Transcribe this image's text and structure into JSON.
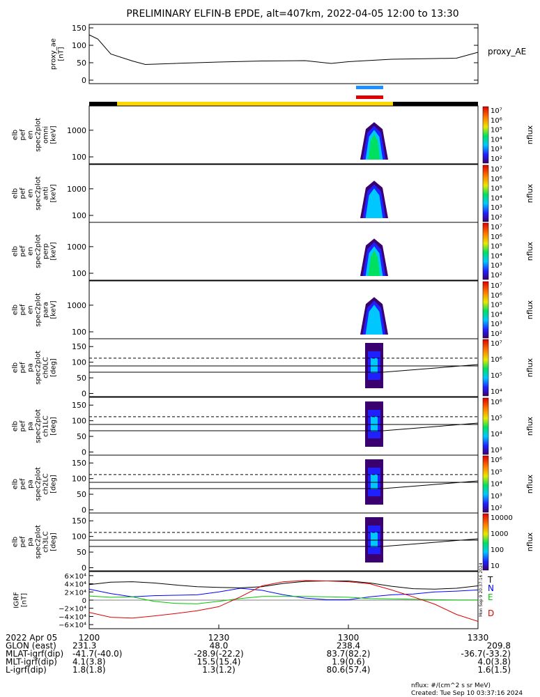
{
  "title": "PRELIMINARY ELFIN-B EPDE, alt=407km, 2022-04-05 12:00 to 13:30",
  "colors": {
    "t": "#000000",
    "n": "#0000ff",
    "e": "#00c800",
    "d": "#e00000",
    "bar_yellow": "#ffd700",
    "bar_blue": "#1e90ff",
    "bar_red": "#e00000"
  },
  "chart_data": [
    {
      "type": "line",
      "id": "proxy_ae",
      "ylabel_lines": [
        "proxy_ae",
        "[nT]"
      ],
      "legend": "proxy_AE",
      "ylim": [
        -10,
        160
      ],
      "yticks": [
        "0",
        "50",
        "100",
        "150"
      ],
      "x": [
        1200,
        1202,
        1205,
        1210,
        1213,
        1220,
        1230,
        1240,
        1250,
        1256,
        1300,
        1310,
        1320,
        1325,
        1330
      ],
      "values": [
        130,
        118,
        75,
        55,
        45,
        48,
        52,
        55,
        56,
        48,
        53,
        60,
        62,
        63,
        80
      ]
    },
    {
      "type": "heatmap",
      "id": "omni",
      "ylabel_lines": [
        "elb",
        "pef",
        "en",
        "spec2plot",
        "omni",
        "[keV]"
      ],
      "yticks": [
        "100",
        "1000"
      ],
      "colorbar_label": "nflux",
      "colorbar_ticks": [
        "10²",
        "10³",
        "10⁴",
        "10⁵",
        "10⁶",
        "10⁷"
      ]
    },
    {
      "type": "heatmap",
      "id": "anti",
      "ylabel_lines": [
        "elb",
        "pef",
        "en",
        "spec2plot",
        "anti",
        "[keV]"
      ],
      "yticks": [
        "100",
        "1000"
      ],
      "colorbar_label": "nflux",
      "colorbar_ticks": [
        "10²",
        "10³",
        "10⁴",
        "10⁵",
        "10⁶",
        "10⁷"
      ]
    },
    {
      "type": "heatmap",
      "id": "perp",
      "ylabel_lines": [
        "elb",
        "pef",
        "en",
        "spec2plot",
        "perp",
        "[keV]"
      ],
      "yticks": [
        "100",
        "1000"
      ],
      "colorbar_label": "nflux",
      "colorbar_ticks": [
        "10²",
        "10³",
        "10⁴",
        "10⁵",
        "10⁶",
        "10⁷"
      ]
    },
    {
      "type": "heatmap",
      "id": "para",
      "ylabel_lines": [
        "elb",
        "pef",
        "en",
        "spec2plot",
        "para",
        "[keV]"
      ],
      "yticks": [
        "100",
        "1000"
      ],
      "colorbar_label": "nflux",
      "colorbar_ticks": [
        "10²",
        "10³",
        "10⁴",
        "10⁵",
        "10⁶",
        "10⁷"
      ]
    },
    {
      "type": "heatmap",
      "id": "ch0lc",
      "ylabel_lines": [
        "elb",
        "pef",
        "pa",
        "spec2plot",
        "ch0LC",
        "[deg]"
      ],
      "yticks": [
        "0",
        "50",
        "100",
        "150"
      ],
      "colorbar_label": "nflux",
      "colorbar_ticks": [
        "10⁴",
        "10⁵",
        "10⁶",
        "10⁷"
      ]
    },
    {
      "type": "heatmap",
      "id": "ch1lc",
      "ylabel_lines": [
        "elb",
        "pef",
        "pa",
        "spec2plot",
        "ch1LC",
        "[deg]"
      ],
      "yticks": [
        "0",
        "50",
        "100",
        "150"
      ],
      "colorbar_label": "nflux",
      "colorbar_ticks": [
        "10³",
        "10⁴",
        "10⁵",
        "10⁶"
      ]
    },
    {
      "type": "heatmap",
      "id": "ch2lc",
      "ylabel_lines": [
        "elb",
        "pef",
        "pa",
        "spec2plot",
        "ch2LC",
        "[deg]"
      ],
      "yticks": [
        "0",
        "50",
        "100",
        "150"
      ],
      "colorbar_label": "nflux",
      "colorbar_ticks": [
        "10²",
        "10³",
        "10⁴",
        "10⁵",
        "10⁶"
      ]
    },
    {
      "type": "heatmap",
      "id": "ch3lc",
      "ylabel_lines": [
        "elb",
        "pef",
        "pa",
        "spec2plot",
        "ch3LC",
        "[deg]"
      ],
      "yticks": [
        "0",
        "50",
        "100",
        "150"
      ],
      "colorbar_label": "nflux",
      "colorbar_ticks": [
        "10",
        "100",
        "1000",
        "10000"
      ]
    },
    {
      "type": "line",
      "id": "igrf",
      "ylabel_lines": [
        "IGRF",
        "[nT]"
      ],
      "ylim": [
        -70000,
        70000
      ],
      "yticks": [
        "−6×10⁴",
        "−4×10⁴",
        "−2×10⁴",
        "0",
        "2×10⁴",
        "4×10⁴",
        "6×10⁴"
      ],
      "legend": [
        "T",
        "N",
        "E",
        "D"
      ],
      "x": [
        1200,
        1205,
        1210,
        1215,
        1220,
        1225,
        1230,
        1235,
        1240,
        1245,
        1250,
        1255,
        1300,
        1305,
        1310,
        1315,
        1320,
        1325,
        1330
      ],
      "series": [
        {
          "name": "T",
          "values": [
            38000,
            44000,
            45000,
            42000,
            37000,
            33000,
            31000,
            30000,
            33000,
            41000,
            46000,
            47000,
            47000,
            42000,
            34000,
            28000,
            27000,
            29000,
            35000
          ]
        },
        {
          "name": "N",
          "values": [
            27000,
            16000,
            8000,
            11000,
            12000,
            13000,
            20000,
            29000,
            24000,
            13000,
            5000,
            1000,
            1000,
            8000,
            13000,
            15000,
            20000,
            22000,
            25000
          ]
        },
        {
          "name": "E",
          "values": [
            10000,
            7000,
            8000,
            -3000,
            -8000,
            -9000,
            -3000,
            4000,
            9000,
            9000,
            9000,
            8000,
            7000,
            4000,
            3000,
            2000,
            1000,
            500,
            500
          ]
        },
        {
          "name": "D",
          "values": [
            -30000,
            -42000,
            -44000,
            -39000,
            -33000,
            -26000,
            -16000,
            8000,
            35000,
            45000,
            48000,
            47000,
            45000,
            40000,
            25000,
            8000,
            -10000,
            -35000,
            -52000
          ]
        }
      ]
    }
  ],
  "xaxis": {
    "ticks": [
      "1200",
      "1230",
      "1300",
      "1330"
    ],
    "rows": [
      {
        "label": "2022 Apr 05",
        "values": [
          "",
          "",
          "",
          ""
        ]
      },
      {
        "label": "GLON (east)",
        "values": [
          "231.3",
          "48.0",
          "238.4",
          "209.8"
        ]
      },
      {
        "label": "MLAT-igrf(dip)",
        "values": [
          "-41.7(-40.0)",
          "-28.9(-22.2)",
          "83.7(82.2)",
          "-36.7(-33.2)"
        ]
      },
      {
        "label": "MLT-igrf(dip)",
        "values": [
          "4.1(3.8)",
          "15.5(15.4)",
          "1.9(0.6)",
          "4.0(3.8)"
        ]
      },
      {
        "label": "L-igrf(dip)",
        "values": [
          "1.8(1.8)",
          "1.3(1.2)",
          "80.6(57.4)",
          "1.6(1.5)"
        ]
      }
    ]
  },
  "footer": {
    "units": "nflux: #/(cm^2 s sr MeV)",
    "created": "Created: Tue Sep 10 03:37:16 2024"
  },
  "side_stamp": "Mon Sep 9 20:37:16 2024"
}
